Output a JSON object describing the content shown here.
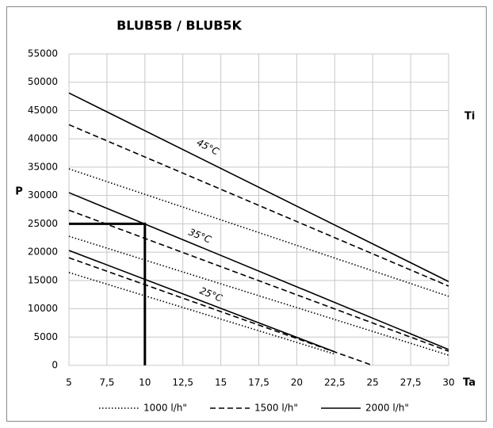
{
  "chart_data": {
    "type": "line",
    "title": "BLUB5B / BLUB5K",
    "xlabel": "Ta",
    "ylabel": "P",
    "annotations": [
      "45°C",
      "35°C",
      "25°C",
      "Ti"
    ],
    "xlim": [
      5,
      30
    ],
    "xticks": [
      5,
      {
        "value": 7.5,
        "label": "7,5"
      },
      10,
      {
        "value": 12.5,
        "label": "12,5"
      },
      15,
      {
        "value": 17.5,
        "label": "17,5"
      },
      20,
      {
        "value": 22.5,
        "label": "22,5"
      },
      25,
      {
        "value": 27.5,
        "label": "27,5"
      },
      30
    ],
    "ylim": [
      0,
      55000
    ],
    "yticks": [
      0,
      5000,
      10000,
      15000,
      20000,
      25000,
      30000,
      35000,
      40000,
      45000,
      50000,
      55000
    ],
    "grid": true,
    "legend": "bottom",
    "series": [
      {
        "name": "1000 l/h\"",
        "color": "#000000",
        "dash": "dotted",
        "x": [
          5,
          30
        ],
        "values": [
          34700,
          12200
        ]
      },
      {
        "name": "1500 l/h\"",
        "color": "#000000",
        "dash": "dashed",
        "x": [
          5,
          30
        ],
        "values": [
          42500,
          14000
        ]
      },
      {
        "name": "2000 l/h\"",
        "color": "#000000",
        "dash": "solid",
        "x": [
          5,
          30
        ],
        "values": [
          48100,
          14800
        ]
      },
      {
        "color": "#000000",
        "dash": "dotted",
        "x": [
          5,
          30
        ],
        "values": [
          22800,
          1800
        ]
      },
      {
        "color": "#000000",
        "dash": "dashed",
        "x": [
          5,
          30
        ],
        "values": [
          27400,
          2500
        ]
      },
      {
        "color": "#000000",
        "dash": "solid",
        "x": [
          5,
          30
        ],
        "values": [
          30500,
          2800
        ]
      },
      {
        "color": "#000000",
        "dash": "dotted",
        "x": [
          5,
          22.5
        ],
        "values": [
          16400,
          2000
        ]
      },
      {
        "color": "#000000",
        "dash": "dashed",
        "x": [
          5,
          25
        ],
        "values": [
          19000,
          0
        ]
      },
      {
        "color": "#000000",
        "dash": "solid",
        "x": [
          5,
          22.5
        ],
        "values": [
          20300,
          2400
        ]
      }
    ],
    "highlight": {
      "color": "#000000",
      "x": [
        5,
        10,
        10
      ],
      "values": [
        25000,
        25000,
        0
      ]
    }
  }
}
